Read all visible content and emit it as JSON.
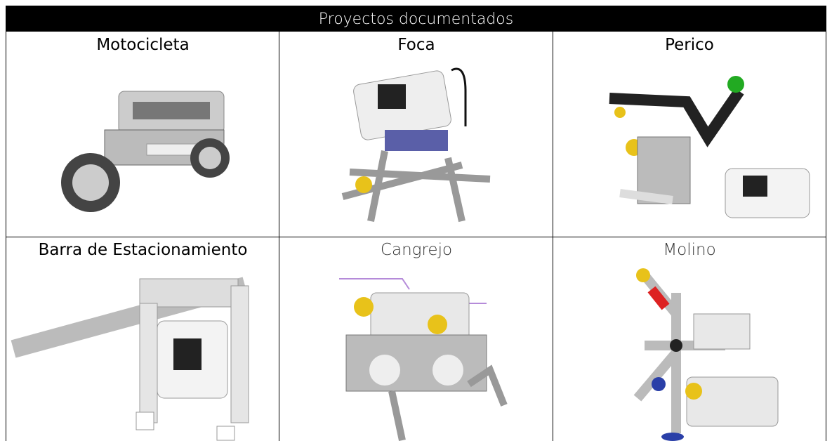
{
  "table": {
    "title": "Proyectos documentados",
    "rows": [
      [
        "Motocicleta",
        "Foca",
        "Perico"
      ],
      [
        "Barra de Estacionamiento",
        "Cangrejo",
        "Molino"
      ]
    ]
  }
}
